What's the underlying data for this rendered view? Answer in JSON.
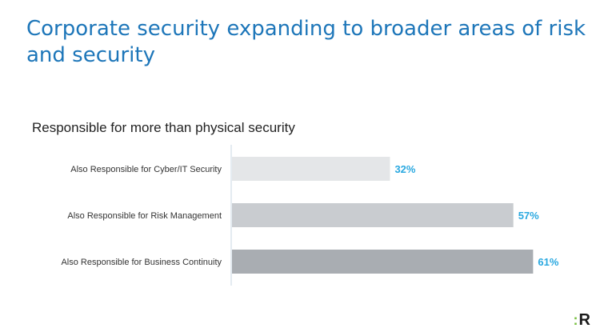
{
  "title": "Corporate security expanding to broader areas of risk and security",
  "subtitle": "Responsible for more than physical security",
  "logo": {
    "text": "R",
    "accent": ":"
  },
  "colors": {
    "title": "#1d76b9",
    "value_label": "#29a8e0",
    "axis": "#c9d7e3",
    "bars": [
      "#e4e6e8",
      "#c9ccd0",
      "#a9adb2"
    ]
  },
  "chart_data": {
    "type": "bar",
    "orientation": "horizontal",
    "categories": [
      "Also Responsible for Cyber/IT Security",
      "Also Responsible for Risk Management",
      "Also Responsible for Business Continuity"
    ],
    "values": [
      32,
      57,
      61
    ],
    "value_labels": [
      "32%",
      "57%",
      "61%"
    ],
    "xlim": [
      0,
      100
    ],
    "grid": false
  }
}
